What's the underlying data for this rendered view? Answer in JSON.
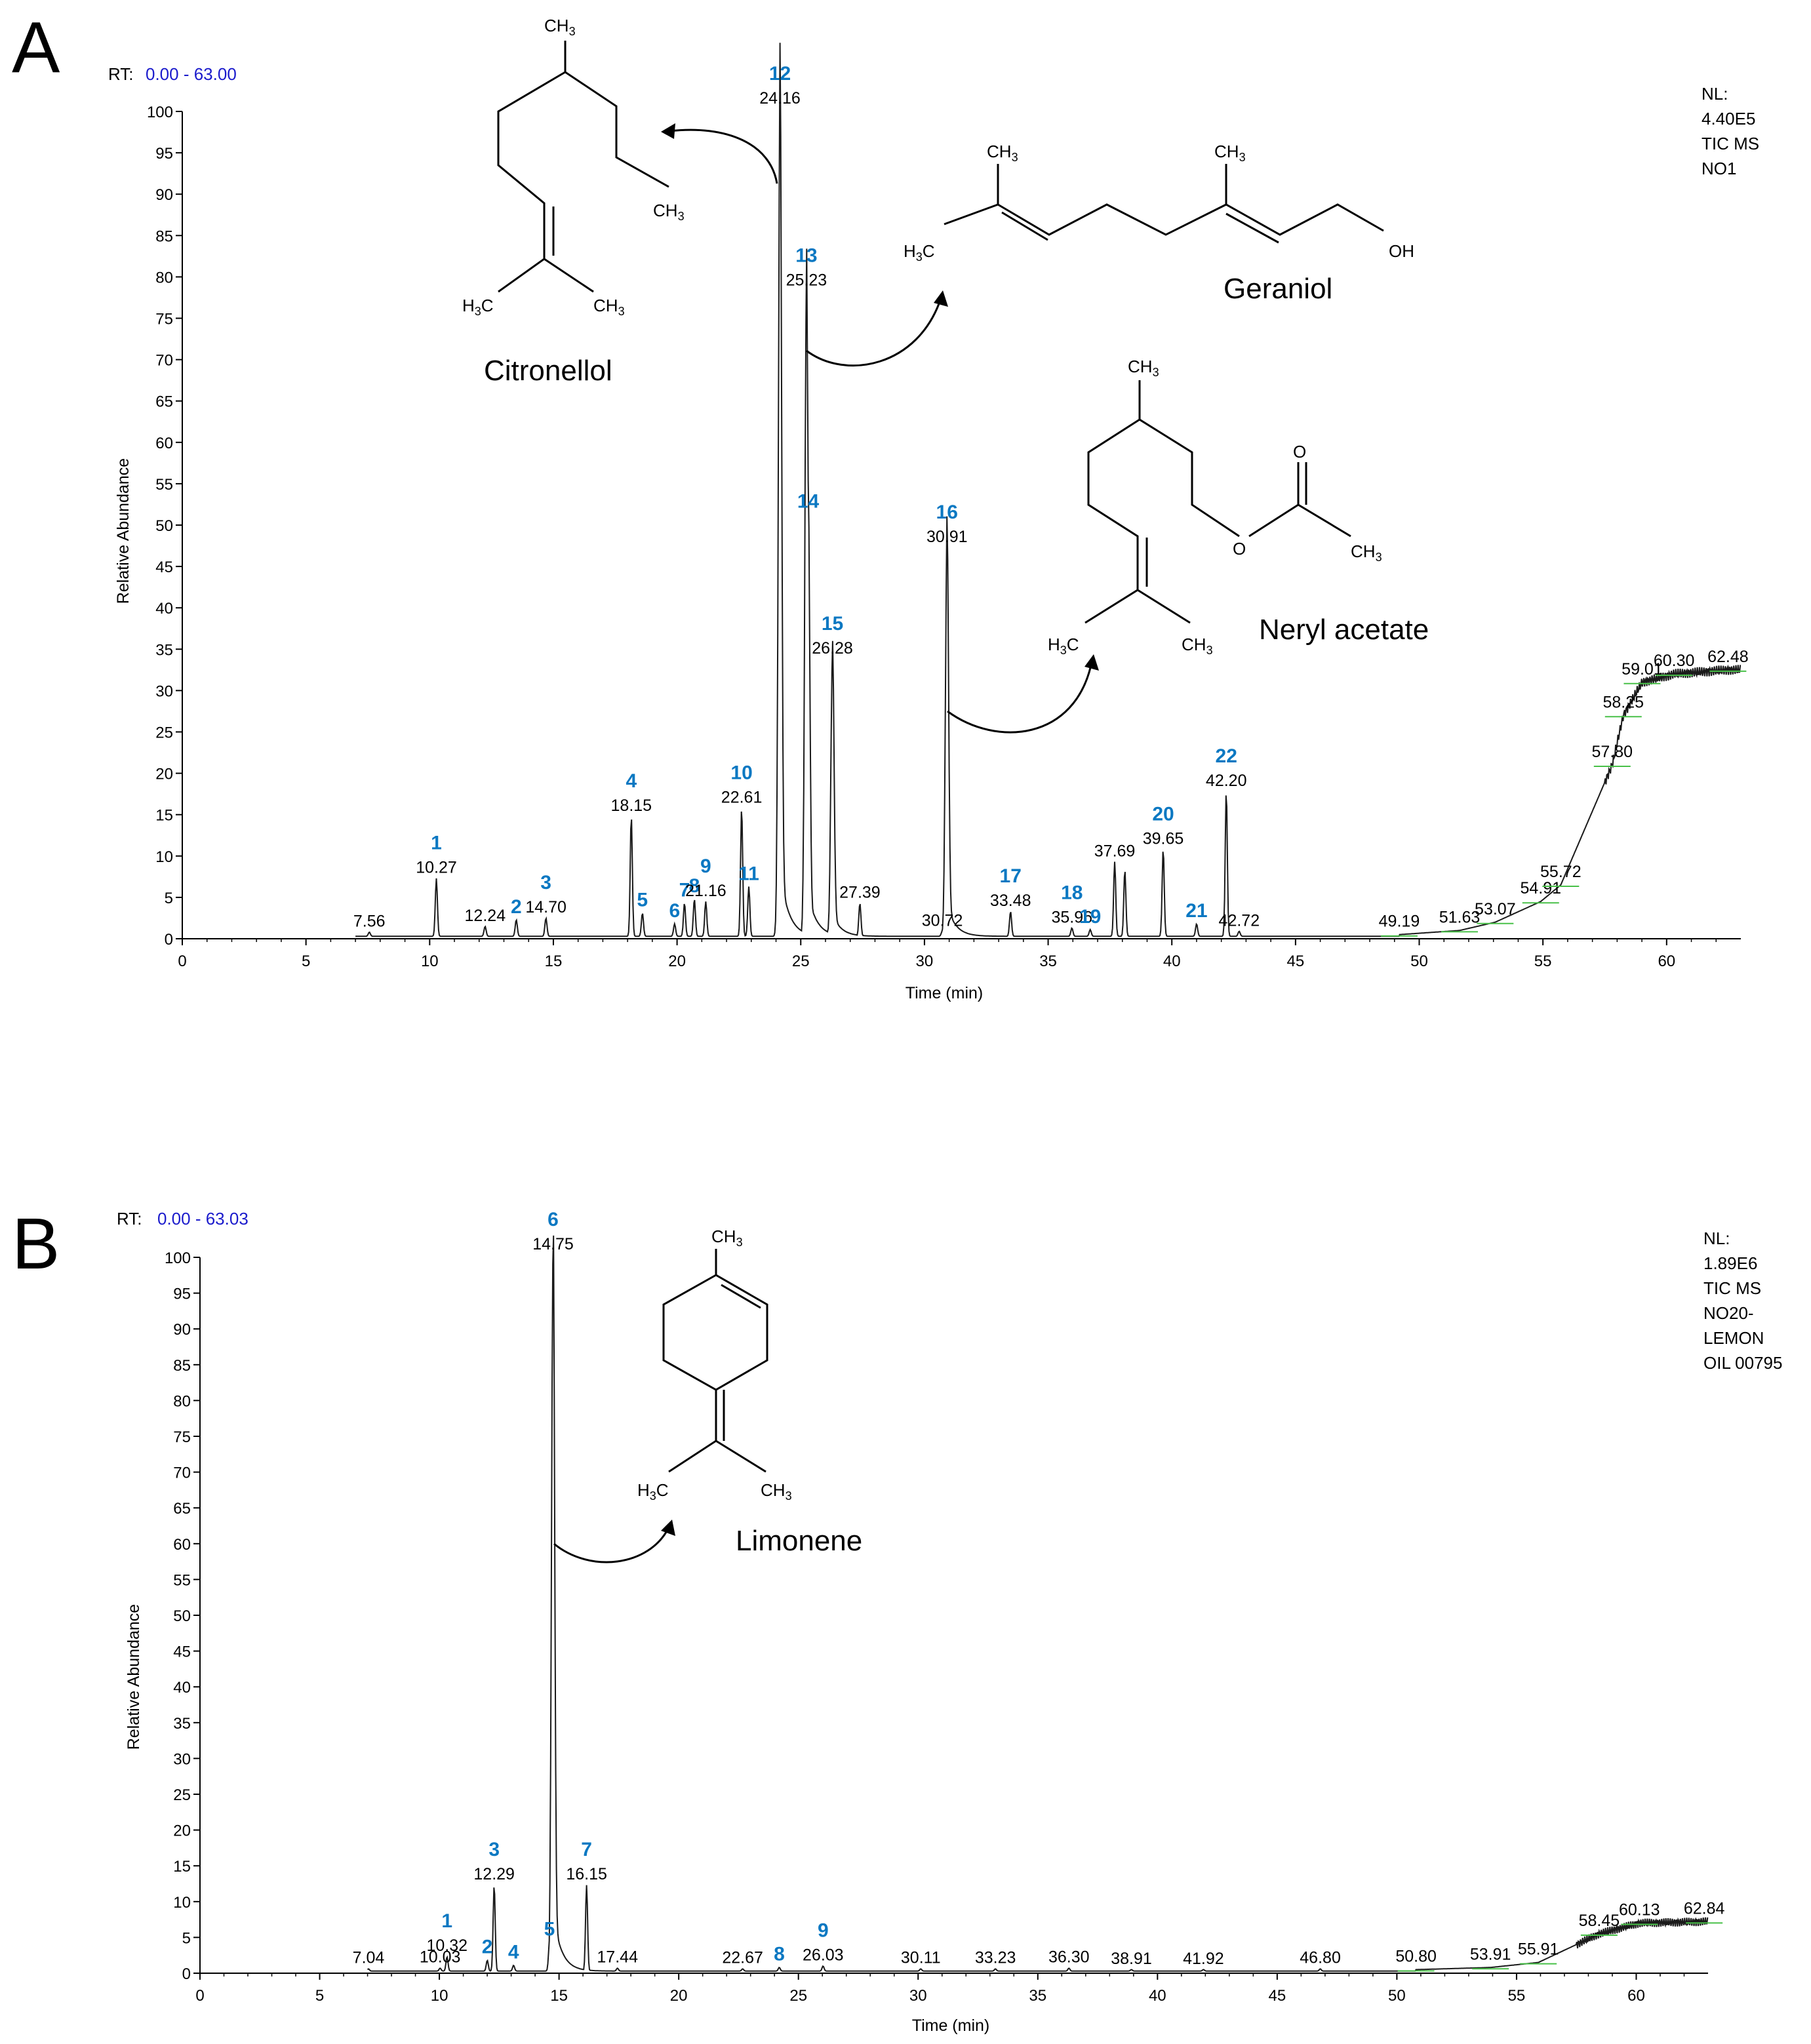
{
  "colors": {
    "trace": "#1a1a1a",
    "axis": "#000000",
    "peak_number": "#0b78c2",
    "rt_label": "#000000",
    "rt_range": "#1b1bcc",
    "baseline_marker": "#48c048"
  },
  "chart_data": [
    {
      "type": "line",
      "panel_letter": "A",
      "rt_prefix": "RT:",
      "rt_range": "0.00 - 63.00",
      "xlabel": "Time (min)",
      "ylabel": "Relative Abundance",
      "xlim": [
        0,
        63
      ],
      "ylim": [
        0,
        100
      ],
      "xticks": [
        0,
        5,
        10,
        15,
        20,
        25,
        30,
        35,
        40,
        45,
        50,
        55,
        60
      ],
      "yticks": [
        0,
        5,
        10,
        15,
        20,
        25,
        30,
        35,
        40,
        45,
        50,
        55,
        60,
        65,
        70,
        75,
        80,
        85,
        90,
        95,
        100
      ],
      "nl_info": [
        "NL:",
        "4.40E5",
        "TIC  MS",
        "NO1"
      ],
      "peaks": [
        {
          "x": 7.56,
          "y": 0.5,
          "label": "7.56"
        },
        {
          "x": 10.27,
          "y": 7,
          "label": "10.27",
          "number": "1"
        },
        {
          "x": 12.24,
          "y": 1.2,
          "label": "12.24"
        },
        {
          "x": 13.5,
          "y": 2,
          "number": "2"
        },
        {
          "x": 14.7,
          "y": 2.2,
          "label": "14.70",
          "number": "3"
        },
        {
          "x": 18.15,
          "y": 14.5,
          "label": "18.15",
          "number": "4"
        },
        {
          "x": 18.6,
          "y": 2.8,
          "number": "5"
        },
        {
          "x": 19.9,
          "y": 1.5,
          "number": "6"
        },
        {
          "x": 20.3,
          "y": 4,
          "number": "7"
        },
        {
          "x": 20.7,
          "y": 4.5,
          "number": "8"
        },
        {
          "x": 21.16,
          "y": 4.2,
          "label": "21.16",
          "number": "9"
        },
        {
          "x": 22.61,
          "y": 15.5,
          "label": "22.61",
          "number": "10"
        },
        {
          "x": 22.9,
          "y": 6,
          "number": "11"
        },
        {
          "x": 24.16,
          "y": 100,
          "label": "24.16",
          "number": "12"
        },
        {
          "x": 25.23,
          "y": 78,
          "label": "25.23",
          "number": "13"
        },
        {
          "x": 25.3,
          "y": 51,
          "number": "14"
        },
        {
          "x": 26.28,
          "y": 33.5,
          "label": "26.28",
          "number": "15"
        },
        {
          "x": 27.39,
          "y": 4,
          "label": "27.39"
        },
        {
          "x": 30.72,
          "y": 0.6,
          "label": "30.72"
        },
        {
          "x": 30.91,
          "y": 47,
          "label": "30.91",
          "number": "16"
        },
        {
          "x": 33.48,
          "y": 3,
          "label": "33.48",
          "number": "17"
        },
        {
          "x": 35.96,
          "y": 1,
          "label": "35.96",
          "number": "18"
        },
        {
          "x": 36.7,
          "y": 0.8,
          "number": "19"
        },
        {
          "x": 37.69,
          "y": 9,
          "label": "37.69"
        },
        {
          "x": 38.1,
          "y": 8,
          "label": ""
        },
        {
          "x": 39.65,
          "y": 10.5,
          "label": "39.65",
          "number": "20"
        },
        {
          "x": 41.0,
          "y": 1.5,
          "number": "21"
        },
        {
          "x": 42.2,
          "y": 17.5,
          "label": "42.20",
          "number": "22"
        },
        {
          "x": 42.72,
          "y": 0.6,
          "label": "42.72"
        },
        {
          "x": 49.19,
          "y": 0.5,
          "label": "49.19"
        },
        {
          "x": 51.63,
          "y": 1,
          "label": "51.63"
        },
        {
          "x": 53.07,
          "y": 2,
          "label": "53.07"
        },
        {
          "x": 54.91,
          "y": 4.5,
          "label": "54.91"
        },
        {
          "x": 55.72,
          "y": 6.5,
          "label": "55.72"
        },
        {
          "x": 57.8,
          "y": 21,
          "label": "57.80"
        },
        {
          "x": 58.25,
          "y": 27,
          "label": "58.25"
        },
        {
          "x": 59.01,
          "y": 31,
          "label": "59.01"
        },
        {
          "x": 60.3,
          "y": 32,
          "label": "60.30"
        },
        {
          "x": 62.48,
          "y": 32.5,
          "label": "62.48"
        }
      ],
      "annotations": [
        {
          "text": "Citronellol"
        },
        {
          "text": "Geraniol"
        },
        {
          "text": "Neryl acetate"
        }
      ]
    },
    {
      "type": "line",
      "panel_letter": "B",
      "rt_prefix": "RT:",
      "rt_range": "0.00 - 63.03",
      "xlabel": "Time (min)",
      "ylabel": "Relative Abundance",
      "xlim": [
        0,
        63
      ],
      "ylim": [
        0,
        100
      ],
      "xticks": [
        0,
        5,
        10,
        15,
        20,
        25,
        30,
        35,
        40,
        45,
        50,
        55,
        60
      ],
      "yticks": [
        0,
        5,
        10,
        15,
        20,
        25,
        30,
        35,
        40,
        45,
        50,
        55,
        60,
        65,
        70,
        75,
        80,
        85,
        90,
        95,
        100
      ],
      "nl_info": [
        "NL:",
        "1.89E6",
        "TIC  MS",
        "NO20-",
        "LEMON",
        "OIL 00795"
      ],
      "peaks": [
        {
          "x": 7.04,
          "y": 0.3,
          "label": "7.04"
        },
        {
          "x": 10.03,
          "y": 0.4,
          "label": "10.03"
        },
        {
          "x": 10.32,
          "y": 2,
          "label": "10.32",
          "number": "1"
        },
        {
          "x": 12.0,
          "y": 1.5,
          "number": "2"
        },
        {
          "x": 12.29,
          "y": 12,
          "label": "12.29",
          "number": "3"
        },
        {
          "x": 13.1,
          "y": 0.8,
          "number": "4"
        },
        {
          "x": 14.6,
          "y": 4,
          "number": "5"
        },
        {
          "x": 14.75,
          "y": 100,
          "label": "14.75",
          "number": "6"
        },
        {
          "x": 16.15,
          "y": 12,
          "label": "16.15",
          "number": "7"
        },
        {
          "x": 17.44,
          "y": 0.4,
          "label": "17.44"
        },
        {
          "x": 22.67,
          "y": 0.3,
          "label": "22.67"
        },
        {
          "x": 24.2,
          "y": 0.5,
          "number": "8"
        },
        {
          "x": 26.03,
          "y": 0.7,
          "label": "26.03",
          "number": "9"
        },
        {
          "x": 30.11,
          "y": 0.3,
          "label": "30.11"
        },
        {
          "x": 33.23,
          "y": 0.3,
          "label": "33.23"
        },
        {
          "x": 36.3,
          "y": 0.4,
          "label": "36.30"
        },
        {
          "x": 38.91,
          "y": 0.2,
          "label": "38.91"
        },
        {
          "x": 41.92,
          "y": 0.2,
          "label": "41.92"
        },
        {
          "x": 46.8,
          "y": 0.3,
          "label": "46.80"
        },
        {
          "x": 50.8,
          "y": 0.5,
          "label": "50.80"
        },
        {
          "x": 53.91,
          "y": 0.8,
          "label": "53.91"
        },
        {
          "x": 55.91,
          "y": 1.5,
          "label": "55.91"
        },
        {
          "x": 58.45,
          "y": 5.5,
          "label": "58.45"
        },
        {
          "x": 60.13,
          "y": 7,
          "label": "60.13"
        },
        {
          "x": 62.84,
          "y": 7.2,
          "label": "62.84"
        }
      ],
      "annotations": [
        {
          "text": "Limonene"
        }
      ]
    }
  ]
}
